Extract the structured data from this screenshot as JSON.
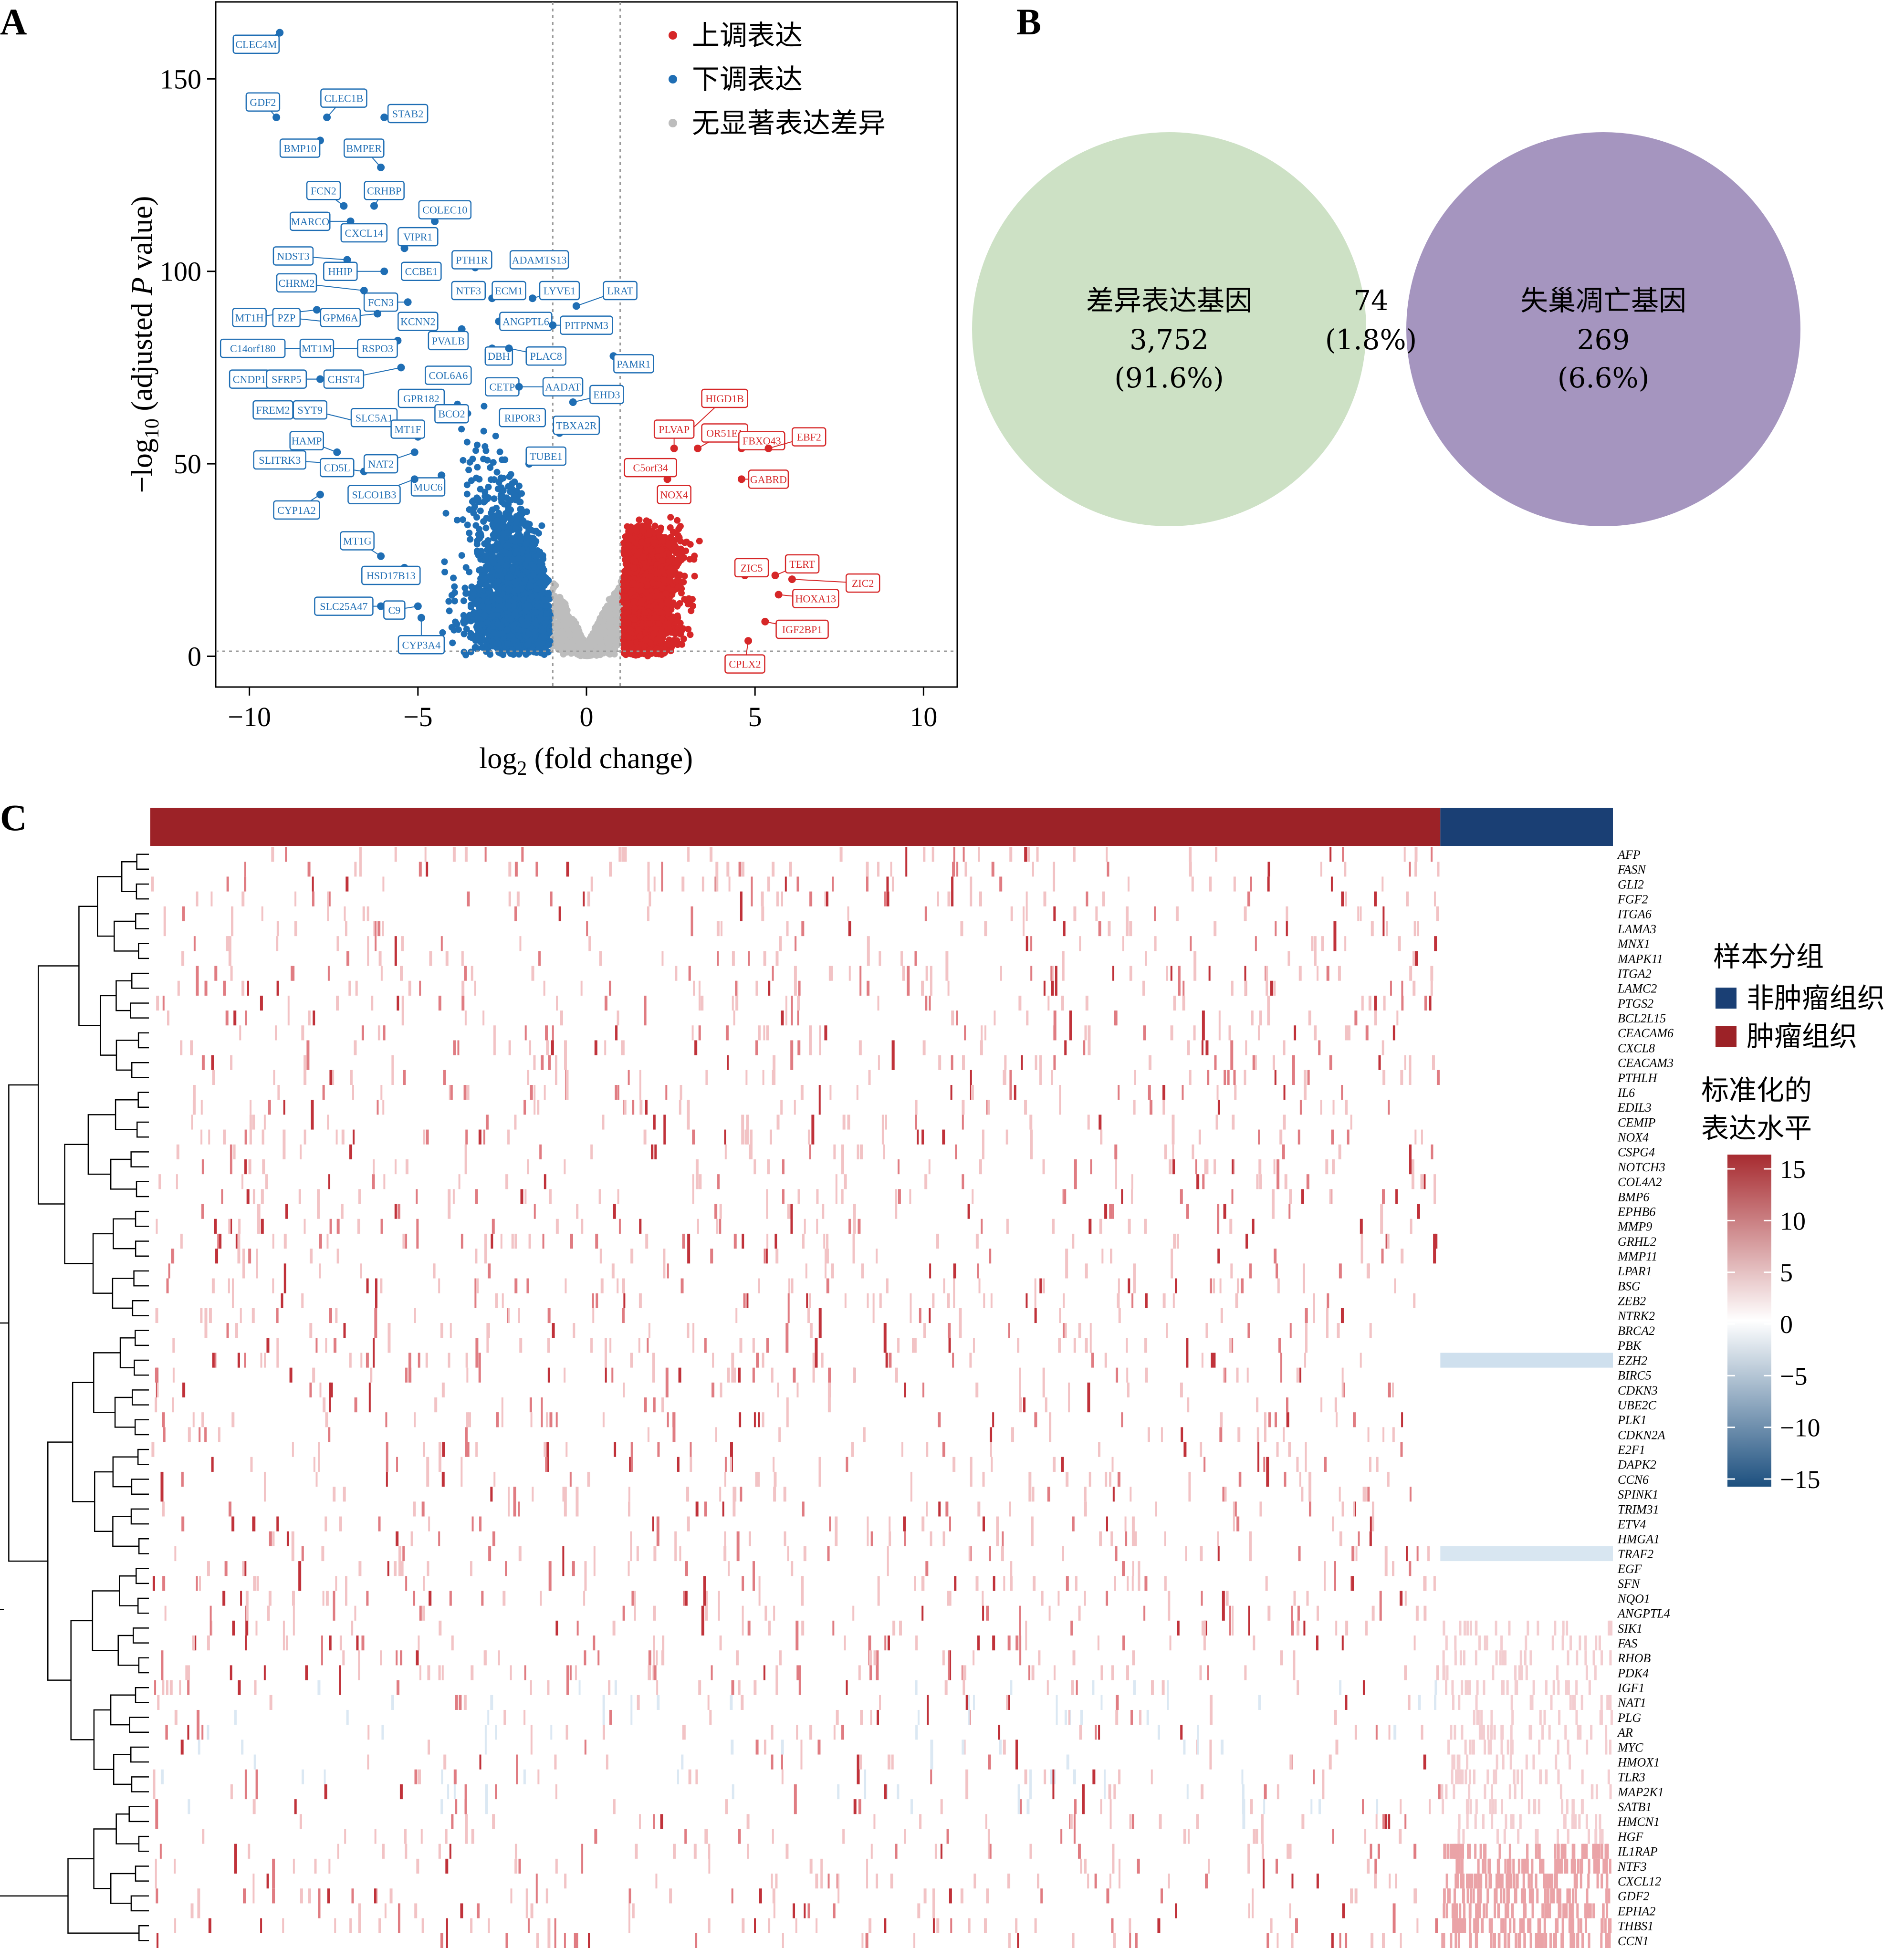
{
  "panels": {
    "a": "A",
    "b": "B",
    "c": "C"
  },
  "chart_data": [
    {
      "type": "scatter",
      "panel": "A",
      "xlabel_main": "log",
      "xlabel_sub": "2",
      "xlabel_rest": " (fold change)",
      "ylabel_pre": "−log",
      "ylabel_sub": "10",
      "ylabel_mid": " (adjusted ",
      "ylabel_italic": "P",
      "ylabel_post": " value)",
      "xlim": [
        -11,
        11
      ],
      "ylim": [
        -8,
        170
      ],
      "xticks": [
        {
          "v": -10,
          "t": "−10"
        },
        {
          "v": -5,
          "t": "−5"
        },
        {
          "v": 0,
          "t": "0"
        },
        {
          "v": 5,
          "t": "5"
        },
        {
          "v": 10,
          "t": "10"
        }
      ],
      "yticks": [
        {
          "v": 0,
          "t": "0"
        },
        {
          "v": 50,
          "t": "50"
        },
        {
          "v": 100,
          "t": "100"
        },
        {
          "v": 150,
          "t": "150"
        }
      ],
      "threshold_x": [
        -1,
        1
      ],
      "threshold_y": 1.3,
      "legend_position": "top-right",
      "colors": {
        "up": "#d62728",
        "down": "#1f6eb4",
        "ns": "#bdbdbd"
      },
      "series": [
        {
          "key": "up",
          "name": "上调表达"
        },
        {
          "key": "down",
          "name": "下调表达"
        },
        {
          "key": "ns",
          "name": "无显著表达差异"
        }
      ],
      "labeled_points": [
        {
          "g": "CLEC4M",
          "x": -9.1,
          "y": 162,
          "lx": -9.8,
          "ly": 159,
          "c": "down"
        },
        {
          "g": "GDF2",
          "x": -9.2,
          "y": 140,
          "lx": -9.6,
          "ly": 144,
          "c": "down"
        },
        {
          "g": "CLEC1B",
          "x": -7.7,
          "y": 140,
          "lx": -7.2,
          "ly": 145,
          "c": "down"
        },
        {
          "g": "STAB2",
          "x": -6.0,
          "y": 140,
          "lx": -5.3,
          "ly": 141,
          "c": "down"
        },
        {
          "g": "BMP10",
          "x": -7.9,
          "y": 134,
          "lx": -8.5,
          "ly": 132,
          "c": "down"
        },
        {
          "g": "BMPER",
          "x": -6.1,
          "y": 127,
          "lx": -6.6,
          "ly": 132,
          "c": "down"
        },
        {
          "g": "FCN2",
          "x": -7.2,
          "y": 117,
          "lx": -7.8,
          "ly": 121,
          "c": "down"
        },
        {
          "g": "CRHBP",
          "x": -6.3,
          "y": 117,
          "lx": -6.0,
          "ly": 121,
          "c": "down"
        },
        {
          "g": "MARCO",
          "x": -7.0,
          "y": 113,
          "lx": -8.2,
          "ly": 113,
          "c": "down"
        },
        {
          "g": "CXCL14",
          "x": -6.5,
          "y": 110,
          "lx": -6.6,
          "ly": 110,
          "c": "down"
        },
        {
          "g": "COLEC10",
          "x": -4.5,
          "y": 113,
          "lx": -4.2,
          "ly": 116,
          "c": "down"
        },
        {
          "g": "VIPR1",
          "x": -5.4,
          "y": 106,
          "lx": -5.0,
          "ly": 109,
          "c": "down"
        },
        {
          "g": "NDST3",
          "x": -7.1,
          "y": 103,
          "lx": -8.7,
          "ly": 104,
          "c": "down"
        },
        {
          "g": "HHIP",
          "x": -6.0,
          "y": 100,
          "lx": -7.3,
          "ly": 100,
          "c": "down"
        },
        {
          "g": "CCBE1",
          "x": -4.7,
          "y": 99,
          "lx": -4.9,
          "ly": 100,
          "c": "down"
        },
        {
          "g": "PTH1R",
          "x": -3.3,
          "y": 101,
          "lx": -3.4,
          "ly": 103,
          "c": "down"
        },
        {
          "g": "ADAMTS13",
          "x": -1.9,
          "y": 102,
          "lx": -1.4,
          "ly": 103,
          "c": "down"
        },
        {
          "g": "CHRM2",
          "x": -6.6,
          "y": 95,
          "lx": -8.6,
          "ly": 97,
          "c": "down"
        },
        {
          "g": "FCN3",
          "x": -5.3,
          "y": 92,
          "lx": -6.1,
          "ly": 92,
          "c": "down"
        },
        {
          "g": "NTF3",
          "x": -3.8,
          "y": 95,
          "lx": -3.5,
          "ly": 95,
          "c": "down"
        },
        {
          "g": "ECM1",
          "x": -2.8,
          "y": 93,
          "lx": -2.3,
          "ly": 95,
          "c": "down"
        },
        {
          "g": "LYVE1",
          "x": -1.6,
          "y": 93,
          "lx": -0.8,
          "ly": 95,
          "c": "down"
        },
        {
          "g": "LRAT",
          "x": -0.3,
          "y": 91,
          "lx": 1.0,
          "ly": 95,
          "c": "down"
        },
        {
          "g": "MT1H",
          "x": -8.0,
          "y": 90,
          "lx": -10.0,
          "ly": 88,
          "c": "down"
        },
        {
          "g": "PZP",
          "x": -7.8,
          "y": 87,
          "lx": -8.9,
          "ly": 88,
          "c": "down"
        },
        {
          "g": "GPM6A",
          "x": -6.2,
          "y": 89,
          "lx": -7.3,
          "ly": 88,
          "c": "down"
        },
        {
          "g": "KCNN2",
          "x": -4.6,
          "y": 88,
          "lx": -5.0,
          "ly": 87,
          "c": "down"
        },
        {
          "g": "ANGPTL6",
          "x": -2.6,
          "y": 87,
          "lx": -1.8,
          "ly": 87,
          "c": "down"
        },
        {
          "g": "PITPNM3",
          "x": -1.0,
          "y": 86,
          "lx": 0.0,
          "ly": 86,
          "c": "down"
        },
        {
          "g": "C14orf180",
          "x": -8.2,
          "y": 80,
          "lx": -9.9,
          "ly": 80,
          "c": "down"
        },
        {
          "g": "MT1M",
          "x": -6.7,
          "y": 80,
          "lx": -8.0,
          "ly": 80,
          "c": "down"
        },
        {
          "g": "RSPO3",
          "x": -5.6,
          "y": 82,
          "lx": -6.2,
          "ly": 80,
          "c": "down"
        },
        {
          "g": "PVALB",
          "x": -3.7,
          "y": 85,
          "lx": -4.1,
          "ly": 82,
          "c": "down"
        },
        {
          "g": "DBH",
          "x": -2.8,
          "y": 80,
          "lx": -2.6,
          "ly": 78,
          "c": "down"
        },
        {
          "g": "PLAC8",
          "x": -2.3,
          "y": 80,
          "lx": -1.2,
          "ly": 78,
          "c": "down"
        },
        {
          "g": "PAMR1",
          "x": 0.8,
          "y": 78,
          "lx": 1.4,
          "ly": 76,
          "c": "down"
        },
        {
          "g": "CNDP1",
          "x": -7.9,
          "y": 72,
          "lx": -10.0,
          "ly": 72,
          "c": "down"
        },
        {
          "g": "SFRP5",
          "x": -6.8,
          "y": 72,
          "lx": -8.9,
          "ly": 72,
          "c": "down"
        },
        {
          "g": "CHST4",
          "x": -5.5,
          "y": 75,
          "lx": -7.2,
          "ly": 72,
          "c": "down"
        },
        {
          "g": "COL6A6",
          "x": -3.6,
          "y": 74,
          "lx": -4.1,
          "ly": 73,
          "c": "down"
        },
        {
          "g": "CETP",
          "x": -2.8,
          "y": 70,
          "lx": -2.5,
          "ly": 70,
          "c": "down"
        },
        {
          "g": "AADAT",
          "x": -2.0,
          "y": 70,
          "lx": -0.7,
          "ly": 70,
          "c": "down"
        },
        {
          "g": "GPR182",
          "x": -4.7,
          "y": 66,
          "lx": -4.9,
          "ly": 67,
          "c": "down"
        },
        {
          "g": "EHD3",
          "x": -0.4,
          "y": 66,
          "lx": 0.6,
          "ly": 68,
          "c": "down"
        },
        {
          "g": "FREM2",
          "x": -7.8,
          "y": 64,
          "lx": -9.3,
          "ly": 64,
          "c": "down"
        },
        {
          "g": "SYT9",
          "x": -6.8,
          "y": 61,
          "lx": -8.2,
          "ly": 64,
          "c": "down"
        },
        {
          "g": "SLC5A1",
          "x": -5.3,
          "y": 60,
          "lx": -6.3,
          "ly": 62,
          "c": "down"
        },
        {
          "g": "BCO2",
          "x": -3.7,
          "y": 64,
          "lx": -4.0,
          "ly": 63,
          "c": "down"
        },
        {
          "g": "RIPOR3",
          "x": -2.3,
          "y": 61,
          "lx": -1.9,
          "ly": 62,
          "c": "down"
        },
        {
          "g": "TBXA2R",
          "x": -0.8,
          "y": 58,
          "lx": -0.3,
          "ly": 60,
          "c": "down"
        },
        {
          "g": "MT1F",
          "x": -5.0,
          "y": 57,
          "lx": -5.3,
          "ly": 59,
          "c": "down"
        },
        {
          "g": "HAMP",
          "x": -7.4,
          "y": 53,
          "lx": -8.3,
          "ly": 56,
          "c": "down"
        },
        {
          "g": "SLITRK3",
          "x": -7.3,
          "y": 50,
          "lx": -9.1,
          "ly": 51,
          "c": "down"
        },
        {
          "g": "CD5L",
          "x": -6.6,
          "y": 48,
          "lx": -7.4,
          "ly": 49,
          "c": "down"
        },
        {
          "g": "NAT2",
          "x": -5.1,
          "y": 53,
          "lx": -6.1,
          "ly": 50,
          "c": "down"
        },
        {
          "g": "TUBE1",
          "x": -1.7,
          "y": 50,
          "lx": -1.2,
          "ly": 52,
          "c": "down"
        },
        {
          "g": "MUC6",
          "x": -4.3,
          "y": 47,
          "lx": -4.7,
          "ly": 44,
          "c": "down"
        },
        {
          "g": "SLCO1B3",
          "x": -5.1,
          "y": 46,
          "lx": -6.3,
          "ly": 42,
          "c": "down"
        },
        {
          "g": "CYP1A2",
          "x": -7.9,
          "y": 42,
          "lx": -8.6,
          "ly": 38,
          "c": "down"
        },
        {
          "g": "MT1G",
          "x": -6.1,
          "y": 26,
          "lx": -6.8,
          "ly": 30,
          "c": "down"
        },
        {
          "g": "HSD17B13",
          "x": -5.4,
          "y": 23,
          "lx": -5.8,
          "ly": 21,
          "c": "down"
        },
        {
          "g": "SLC25A47",
          "x": -6.1,
          "y": 13,
          "lx": -7.2,
          "ly": 13,
          "c": "down"
        },
        {
          "g": "C9",
          "x": -5.0,
          "y": 13,
          "lx": -5.7,
          "ly": 12,
          "c": "down"
        },
        {
          "g": "CYP3A4",
          "x": -4.9,
          "y": 10,
          "lx": -4.9,
          "ly": 3,
          "c": "down"
        },
        {
          "g": "HIGD1B",
          "x": 3.0,
          "y": 58,
          "lx": 4.1,
          "ly": 67,
          "c": "up"
        },
        {
          "g": "PLVAP",
          "x": 2.6,
          "y": 54,
          "lx": 2.6,
          "ly": 59,
          "c": "up"
        },
        {
          "g": "OR51E1",
          "x": 3.3,
          "y": 54,
          "lx": 4.1,
          "ly": 58,
          "c": "up"
        },
        {
          "g": "FBXO43",
          "x": 4.6,
          "y": 54,
          "lx": 5.2,
          "ly": 56,
          "c": "up"
        },
        {
          "g": "EBF2",
          "x": 5.4,
          "y": 54,
          "lx": 6.6,
          "ly": 57,
          "c": "up"
        },
        {
          "g": "C5orf34",
          "x": 2.4,
          "y": 46,
          "lx": 1.9,
          "ly": 49,
          "c": "up"
        },
        {
          "g": "GABRD",
          "x": 4.6,
          "y": 46,
          "lx": 5.4,
          "ly": 46,
          "c": "up"
        },
        {
          "g": "NOX4",
          "x": 2.8,
          "y": 43,
          "lx": 2.6,
          "ly": 42,
          "c": "up"
        },
        {
          "g": "ZIC5",
          "x": 4.7,
          "y": 21,
          "lx": 4.9,
          "ly": 23,
          "c": "up"
        },
        {
          "g": "TERT",
          "x": 5.6,
          "y": 21,
          "lx": 6.4,
          "ly": 24,
          "c": "up"
        },
        {
          "g": "ZIC2",
          "x": 6.1,
          "y": 20,
          "lx": 8.2,
          "ly": 19,
          "c": "up"
        },
        {
          "g": "HOXA13",
          "x": 5.7,
          "y": 16,
          "lx": 6.8,
          "ly": 15,
          "c": "up"
        },
        {
          "g": "IGF2BP1",
          "x": 5.3,
          "y": 9,
          "lx": 6.4,
          "ly": 7,
          "c": "up"
        },
        {
          "g": "CPLX2",
          "x": 4.8,
          "y": 4,
          "lx": 4.7,
          "ly": -2,
          "c": "up"
        }
      ]
    },
    {
      "type": "venn",
      "panel": "B",
      "sets": [
        {
          "name": "差异表达基因",
          "count": "3,752",
          "pct": "(91.6%)",
          "color": "#cde1c5"
        },
        {
          "name": "失巢凋亡基因",
          "count": "269",
          "pct": "(6.6%)",
          "color": "#a595bf"
        }
      ],
      "overlap": {
        "count": "74",
        "pct": "(1.8%)",
        "color": "#8585a5"
      }
    },
    {
      "type": "heatmap",
      "panel": "C",
      "annotation_title": "样本分组",
      "groups": [
        {
          "name": "非肿瘤组织",
          "color": "#1a3f74",
          "fraction": 0.118
        },
        {
          "name": "肿瘤组织",
          "color": "#9c2227",
          "fraction": 0.882
        }
      ],
      "colorbar_title_1": "标准化的",
      "colorbar_title_2": "表达水平",
      "colorbar_range": [
        -15,
        15
      ],
      "colorbar_ticks": [
        {
          "v": 15,
          "t": "15"
        },
        {
          "v": 10,
          "t": "10"
        },
        {
          "v": 5,
          "t": "5"
        },
        {
          "v": 0,
          "t": "0"
        },
        {
          "v": -5,
          "t": "−5"
        },
        {
          "v": -10,
          "t": "−10"
        },
        {
          "v": -15,
          "t": "−15"
        }
      ],
      "colorbar_colors": {
        "high": "#a72b30",
        "mid": "#ffffff",
        "low": "#1d507f"
      },
      "rows": [
        "AFP",
        "FASN",
        "GLI2",
        "FGF2",
        "ITGA6",
        "LAMA3",
        "MNX1",
        "MAPK11",
        "ITGA2",
        "LAMC2",
        "PTGS2",
        "BCL2L15",
        "CEACAM6",
        "CXCL8",
        "CEACAM3",
        "PTHLH",
        "IL6",
        "EDIL3",
        "CEMIP",
        "NOX4",
        "CSPG4",
        "NOTCH3",
        "COL4A2",
        "BMP6",
        "EPHB6",
        "MMP9",
        "GRHL2",
        "MMP11",
        "LPAR1",
        "BSG",
        "ZEB2",
        "NTRK2",
        "BRCA2",
        "PBK",
        "EZH2",
        "BIRC5",
        "CDKN3",
        "UBE2C",
        "PLK1",
        "CDKN2A",
        "E2F1",
        "DAPK2",
        "CCN6",
        "SPINK1",
        "TRIM31",
        "ETV4",
        "HMGA1",
        "TRAF2",
        "EGF",
        "SFN",
        "NQO1",
        "ANGPTL4",
        "SIK1",
        "FAS",
        "RHOB",
        "PDK4",
        "IGF1",
        "NAT1",
        "PLG",
        "AR",
        "MYC",
        "HMOX1",
        "TLR3",
        "MAP2K1",
        "SATB1",
        "HMCN1",
        "HGF",
        "IL1RAP",
        "NTF3",
        "CXCL12",
        "GDF2",
        "EPHA2",
        "THBS1",
        "CCN1"
      ]
    }
  ]
}
